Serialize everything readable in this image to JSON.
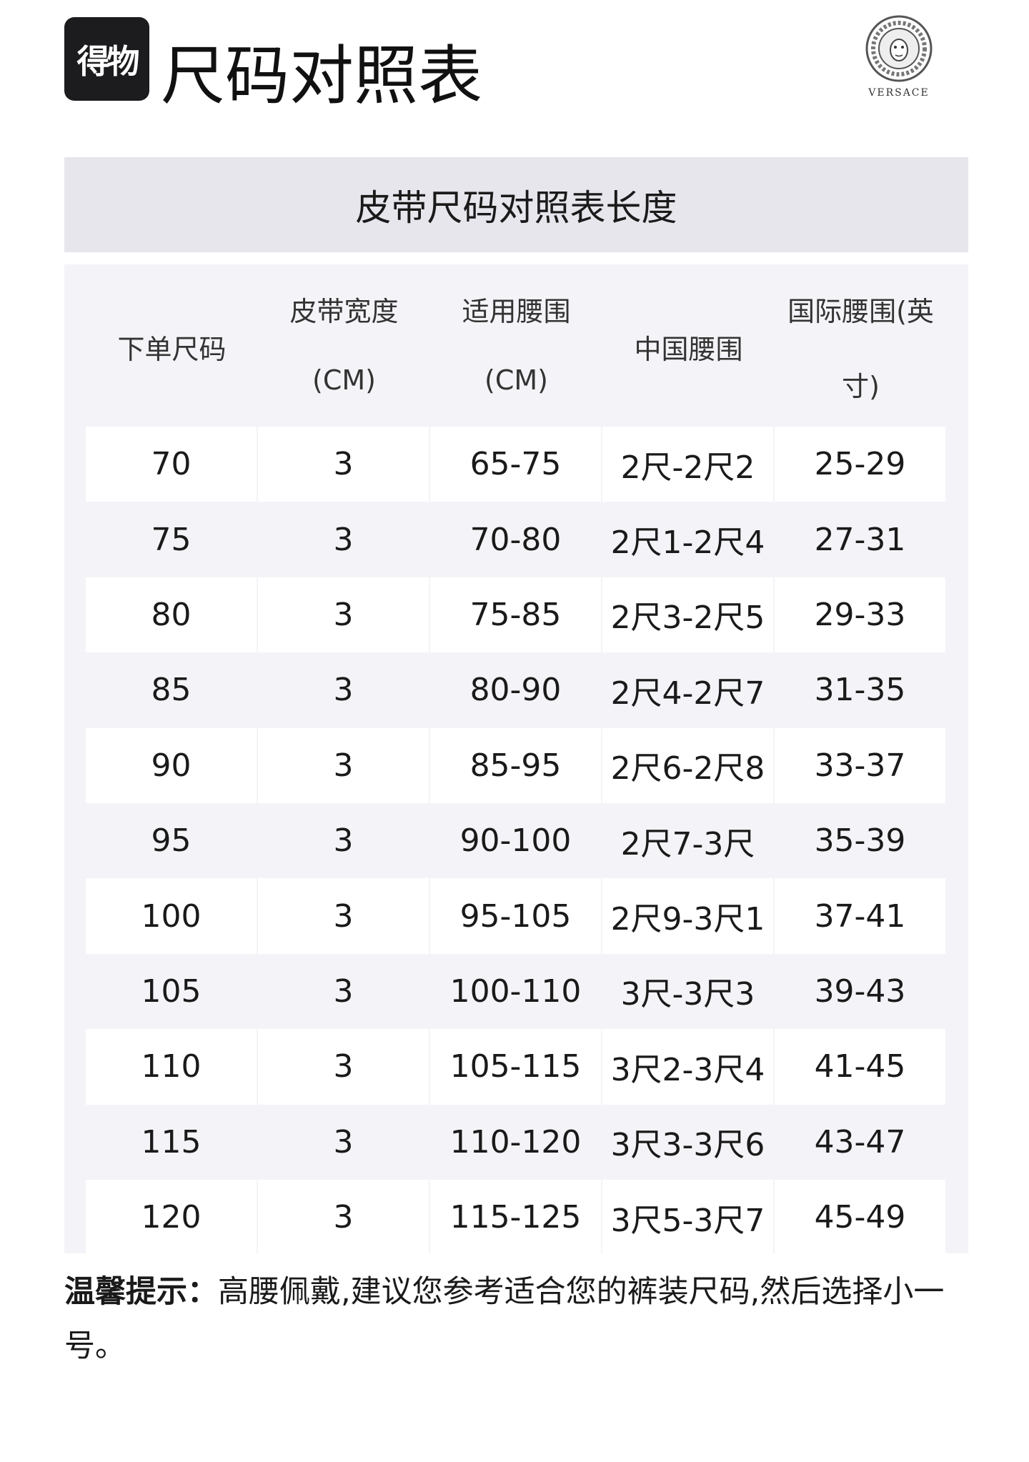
{
  "header": {
    "logo_text": "得物",
    "title": "尺码对照表",
    "brand": "VERSACE"
  },
  "banner": {
    "title": "皮带尺码对照表长度"
  },
  "table": {
    "columns": [
      {
        "line1": "",
        "middle": "下单尺码",
        "line3": ""
      },
      {
        "line1": "皮带宽度",
        "middle": "",
        "line3": "(CM)"
      },
      {
        "line1": "适用腰围",
        "middle": "",
        "line3": "(CM)"
      },
      {
        "line1": "",
        "middle": "中国腰围",
        "line3": ""
      },
      {
        "line1": "国际腰围(英",
        "middle": "",
        "line3": "寸)"
      }
    ],
    "rows": [
      [
        "70",
        "3",
        "65-75",
        "2尺-2尺2",
        "25-29"
      ],
      [
        "75",
        "3",
        "70-80",
        "2尺1-2尺4",
        "27-31"
      ],
      [
        "80",
        "3",
        "75-85",
        "2尺3-2尺5",
        "29-33"
      ],
      [
        "85",
        "3",
        "80-90",
        "2尺4-2尺7",
        "31-35"
      ],
      [
        "90",
        "3",
        "85-95",
        "2尺6-2尺8",
        "33-37"
      ],
      [
        "95",
        "3",
        "90-100",
        "2尺7-3尺",
        "35-39"
      ],
      [
        "100",
        "3",
        "95-105",
        "2尺9-3尺1",
        "37-41"
      ],
      [
        "105",
        "3",
        "100-110",
        "3尺-3尺3",
        "39-43"
      ],
      [
        "110",
        "3",
        "105-115",
        "3尺2-3尺4",
        "41-45"
      ],
      [
        "115",
        "3",
        "110-120",
        "3尺3-3尺6",
        "43-47"
      ],
      [
        "120",
        "3",
        "115-125",
        "3尺5-3尺7",
        "45-49"
      ]
    ]
  },
  "tip": {
    "label": "温馨提示：",
    "text": "高腰佩戴,建议您参考适合您的裤装尺码,然后选择小一号。"
  }
}
